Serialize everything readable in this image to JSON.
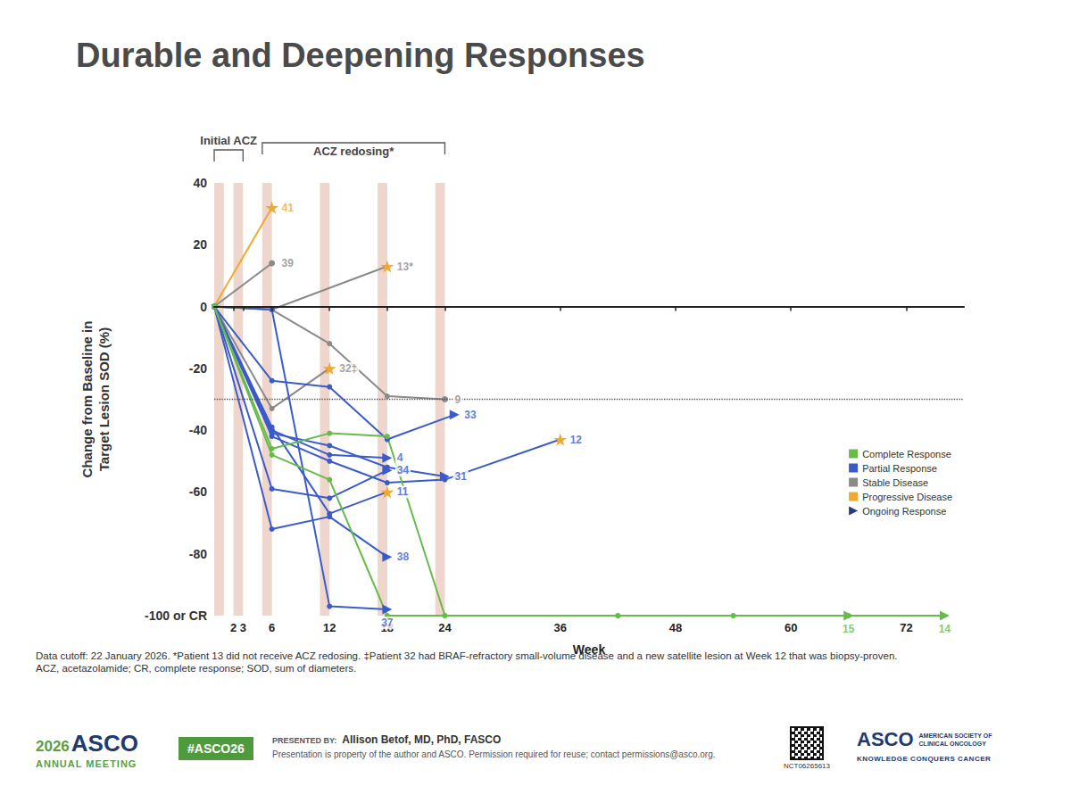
{
  "chart_data": {
    "type": "line",
    "title": "Durable and Deepening Responses",
    "y_label": "Change from Baseline in Target Lesion SOD (%)",
    "x_label": "Week",
    "xlim": [
      0,
      78
    ],
    "xticks": [
      2,
      3,
      6,
      12,
      18,
      24,
      36,
      48,
      60,
      72
    ],
    "ylim": [
      -100,
      40
    ],
    "yticks": [
      40,
      20,
      0,
      -20,
      -40,
      -60,
      -80,
      {
        "value": -100,
        "label": "-100 or CR"
      }
    ],
    "grid": false,
    "legend": "lower right",
    "legend_entries": [
      {
        "name": "Complete Response",
        "color": "#66bb4a",
        "marker": "square"
      },
      {
        "name": "Partial Response",
        "color": "#3b5bc9",
        "marker": "square"
      },
      {
        "name": "Stable Disease",
        "color": "#8a8a8a",
        "marker": "square"
      },
      {
        "name": "Progressive Disease",
        "color": "#f0a830",
        "marker": "square"
      },
      {
        "name": "Ongoing Response",
        "color": "#2b3a7a",
        "marker": "arrow"
      }
    ],
    "dosing_periods": [
      [
        0,
        1
      ],
      [
        2,
        3
      ],
      [
        5,
        6
      ],
      [
        11,
        12
      ],
      [
        17,
        18
      ],
      [
        23,
        24
      ]
    ],
    "annotations": [
      {
        "text": "Initial ACZ",
        "start": 0,
        "end": 3
      },
      {
        "text": "ACZ redosing*",
        "start": 5,
        "end": 24
      }
    ],
    "reference_lines": [
      -30
    ],
    "series": [
      {
        "name": "41",
        "color": "#f0a830",
        "marker": "star",
        "x": [
          0,
          6
        ],
        "values": [
          0,
          32
        ],
        "colors": [
          "#f0a830",
          "#f0a830"
        ]
      },
      {
        "name": "39",
        "color": "#8a8a8a",
        "marker": "circle",
        "x": [
          0,
          6
        ],
        "values": [
          0,
          14
        ],
        "colors": [
          "#8a8a8a",
          "#8a8a8a"
        ]
      },
      {
        "name": "13*",
        "color": "#8a8a8a",
        "marker": "star",
        "x": [
          0,
          6,
          18
        ],
        "values": [
          0,
          -1,
          13
        ],
        "colors": [
          "#8a8a8a",
          "#8a8a8a",
          "#f0a830"
        ]
      },
      {
        "name": "32‡",
        "color": "#8a8a8a",
        "marker": "star",
        "x": [
          0,
          6,
          12
        ],
        "values": [
          0,
          -33,
          -20
        ],
        "colors": [
          "#8a8a8a",
          "#8a8a8a",
          "#f0a830"
        ]
      },
      {
        "name": "9",
        "color": "#8a8a8a",
        "marker": "circle",
        "x": [
          0,
          6,
          12,
          18,
          24
        ],
        "values": [
          0,
          -1,
          -12,
          -29,
          -30
        ],
        "colors": [
          "#8a8a8a",
          "#8a8a8a",
          "#8a8a8a",
          "#8a8a8a",
          "#8a8a8a"
        ]
      },
      {
        "name": "33",
        "color": "#3b5bc9",
        "marker": "arrow",
        "x": [
          0,
          6,
          12,
          18,
          25
        ],
        "values": [
          0,
          -24,
          -26,
          -43,
          -35
        ],
        "colors": [
          "#3b5bc9",
          "#3b5bc9",
          "#3b5bc9",
          "#3b5bc9",
          "#3b5bc9"
        ]
      },
      {
        "name": "4",
        "color": "#3b5bc9",
        "marker": "arrow",
        "x": [
          0,
          6,
          12,
          18
        ],
        "values": [
          0,
          -40,
          -48,
          -49
        ],
        "colors": [
          "#3b5bc9",
          "#3b5bc9",
          "#3b5bc9",
          "#3b5bc9"
        ]
      },
      {
        "name": "34",
        "color": "#3b5bc9",
        "marker": "arrow",
        "x": [
          0,
          6,
          12,
          18
        ],
        "values": [
          0,
          -59,
          -62,
          -53
        ],
        "colors": [
          "#3b5bc9",
          "#3b5bc9",
          "#3b5bc9",
          "#3b5bc9"
        ]
      },
      {
        "name": "31",
        "color": "#3b5bc9",
        "marker": "arrow",
        "x": [
          0,
          6,
          12,
          18,
          24
        ],
        "values": [
          0,
          -41,
          -45,
          -52,
          -55
        ],
        "colors": [
          "#3b5bc9",
          "#3b5bc9",
          "#3b5bc9",
          "#3b5bc9",
          "#3b5bc9"
        ]
      },
      {
        "name": "12",
        "color": "#3b5bc9",
        "marker": "star",
        "x": [
          0,
          6,
          12,
          18,
          24,
          36
        ],
        "values": [
          0,
          -42,
          -50,
          -57,
          -56,
          -43
        ],
        "colors": [
          "#3b5bc9",
          "#3b5bc9",
          "#3b5bc9",
          "#3b5bc9",
          "#3b5bc9",
          "#f0a830"
        ]
      },
      {
        "name": "11",
        "color": "#3b5bc9",
        "marker": "star",
        "x": [
          0,
          6,
          12,
          18
        ],
        "values": [
          0,
          -39,
          -67,
          -60
        ],
        "colors": [
          "#3b5bc9",
          "#3b5bc9",
          "#3b5bc9",
          "#f0a830"
        ]
      },
      {
        "name": "38",
        "color": "#3b5bc9",
        "marker": "arrow",
        "x": [
          0,
          6,
          12,
          18
        ],
        "values": [
          0,
          -72,
          -68,
          -81
        ],
        "colors": [
          "#3b5bc9",
          "#3b5bc9",
          "#3b5bc9",
          "#3b5bc9"
        ]
      },
      {
        "name": "37",
        "color": "#3b5bc9",
        "marker": "arrow",
        "x": [
          0,
          6,
          12,
          18
        ],
        "values": [
          0,
          -1,
          -97,
          -98
        ],
        "colors": [
          "#3b5bc9",
          "#3b5bc9",
          "#3b5bc9",
          "#3b5bc9"
        ]
      },
      {
        "name": "15",
        "color": "#66bb4a",
        "marker": "arrow",
        "x": [
          0,
          6,
          12,
          18,
          24,
          42,
          54,
          66
        ],
        "values": [
          0,
          -48,
          -56,
          -100,
          -100,
          -100,
          -100,
          -100
        ],
        "colors": [
          "#66bb4a",
          "#66bb4a",
          "#66bb4a",
          "#66bb4a",
          "#66bb4a",
          "#66bb4a",
          "#66bb4a",
          "#66bb4a"
        ]
      },
      {
        "name": "14",
        "color": "#66bb4a",
        "marker": "arrow",
        "x": [
          0,
          6,
          12,
          18,
          24,
          42,
          54,
          66,
          76
        ],
        "values": [
          0,
          -46,
          -41,
          -42,
          -100,
          -100,
          -100,
          -100,
          -100
        ],
        "colors": [
          "#66bb4a",
          "#66bb4a",
          "#66bb4a",
          "#66bb4a",
          "#66bb4a",
          "#66bb4a",
          "#66bb4a",
          "#66bb4a",
          "#66bb4a"
        ]
      }
    ]
  },
  "footnotes": [
    "Data cutoff: 22 January 2026. *Patient 13 did not receive ACZ redosing. ‡Patient 32 had BRAF-refractory small-volume disease and a new satellite lesion at Week 12 that was biopsy-proven.",
    "ACZ, acetazolamide; CR, complete response; SOD, sum of diameters."
  ],
  "footer": {
    "meeting_year": "2026",
    "meeting_name": "ASCO",
    "meeting_sub": "ANNUAL MEETING",
    "hashtag": "#ASCO26",
    "presented_by_label": "PRESENTED BY:",
    "presenter": "Allison Betof, MD, PhD, FASCO",
    "notice": "Presentation is property of the author and ASCO. Permission required for reuse; contact permissions@asco.org.",
    "trial_id": "NCT06265613",
    "org_logo": "ASCO",
    "org_name": "AMERICAN SOCIETY OF CLINICAL ONCOLOGY",
    "org_tagline": "KNOWLEDGE CONQUERS CANCER"
  }
}
